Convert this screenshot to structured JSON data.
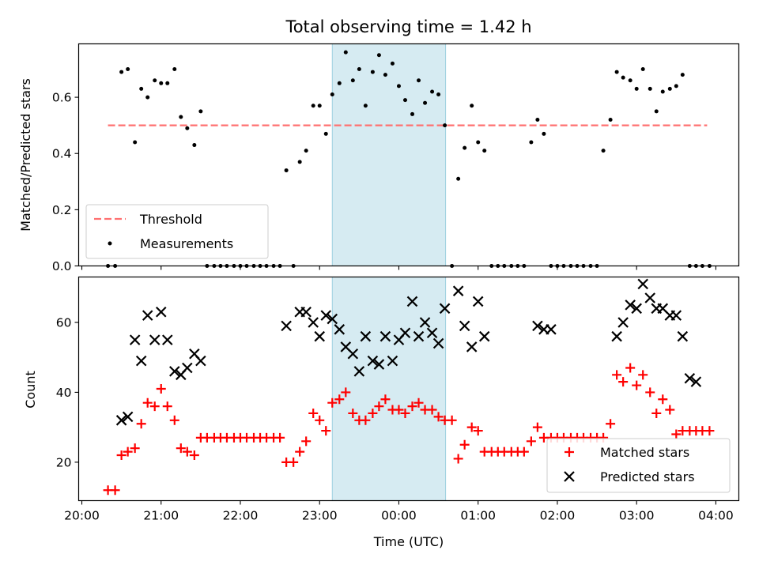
{
  "title": "Total observing time = 1.42 h",
  "chart_data": [
    {
      "type": "scatter",
      "panel": "top",
      "ylabel": "Matched/Predicted stars",
      "xlabel": "",
      "xlim_hours": [
        19.96,
        28.29
      ],
      "ylim": [
        0,
        0.79
      ],
      "yticks": [
        0.0,
        0.2,
        0.4,
        0.6
      ],
      "ytick_labels": [
        "0.0",
        "0.2",
        "0.4",
        "0.6"
      ],
      "threshold": {
        "name": "Threshold",
        "value": 0.5,
        "x_range_hours": [
          20.33,
          27.89
        ],
        "color": "#ff7070"
      },
      "shaded_interval_hours": [
        23.16,
        24.59
      ],
      "legend": {
        "placement": "lower-left",
        "entries": [
          "Threshold",
          "Measurements"
        ]
      },
      "series": [
        {
          "name": "Measurements",
          "color": "#000000",
          "x_hours": [
            20.33,
            20.42,
            20.5,
            20.58,
            20.67,
            20.75,
            20.83,
            20.92,
            21.0,
            21.08,
            21.17,
            21.25,
            21.33,
            21.42,
            21.5,
            21.58,
            21.67,
            21.75,
            21.83,
            21.92,
            22.0,
            22.08,
            22.17,
            22.25,
            22.33,
            22.42,
            22.5,
            22.58,
            22.67,
            22.75,
            22.83,
            22.92,
            23.0,
            23.08,
            23.16,
            23.25,
            23.33,
            23.42,
            23.5,
            23.58,
            23.67,
            23.75,
            23.83,
            23.92,
            24.0,
            24.08,
            24.17,
            24.25,
            24.33,
            24.42,
            24.5,
            24.58,
            24.67,
            24.75,
            24.83,
            24.92,
            25.0,
            25.08,
            25.17,
            25.25,
            25.33,
            25.42,
            25.5,
            25.58,
            25.67,
            25.75,
            25.83,
            25.92,
            26.0,
            26.08,
            26.17,
            26.25,
            26.33,
            26.42,
            26.5,
            26.58,
            26.67,
            26.75,
            26.83,
            26.92,
            27.0,
            27.08,
            27.17,
            27.25,
            27.33,
            27.42,
            27.5,
            27.58,
            27.67,
            27.75,
            27.83,
            27.92
          ],
          "y": [
            0.0,
            0.0,
            0.69,
            0.7,
            0.44,
            0.63,
            0.6,
            0.66,
            0.65,
            0.65,
            0.7,
            0.53,
            0.49,
            0.43,
            0.55,
            0.0,
            0.0,
            0.0,
            0.0,
            0.0,
            0.0,
            0.0,
            0.0,
            0.0,
            0.0,
            0.0,
            0.0,
            0.34,
            0.0,
            0.37,
            0.41,
            0.57,
            0.57,
            0.47,
            0.61,
            0.65,
            0.76,
            0.66,
            0.7,
            0.57,
            0.69,
            0.75,
            0.68,
            0.72,
            0.64,
            0.59,
            0.54,
            0.66,
            0.58,
            0.62,
            0.61,
            0.5,
            0.0,
            0.31,
            0.42,
            0.57,
            0.44,
            0.41,
            0.0,
            0.0,
            0.0,
            0.0,
            0.0,
            0.0,
            0.44,
            0.52,
            0.47,
            0.0,
            0.0,
            0.0,
            0.0,
            0.0,
            0.0,
            0.0,
            0.0,
            0.41,
            0.52,
            0.69,
            0.67,
            0.66,
            0.63,
            0.7,
            0.63,
            0.55,
            0.62,
            0.63,
            0.64,
            0.68,
            0.0,
            0.0,
            0.0,
            0.0
          ]
        }
      ]
    },
    {
      "type": "scatter",
      "panel": "bottom",
      "ylabel": "Count",
      "xlabel": "Time (UTC)",
      "xlim_hours": [
        19.96,
        28.29
      ],
      "ylim": [
        9,
        73
      ],
      "yticks": [
        20,
        40,
        60
      ],
      "ytick_labels": [
        "20",
        "40",
        "60"
      ],
      "xticks_hours": [
        20,
        21,
        22,
        23,
        24,
        25,
        26,
        27,
        28
      ],
      "xtick_labels": [
        "20:00",
        "21:00",
        "22:00",
        "23:00",
        "00:00",
        "01:00",
        "02:00",
        "03:00",
        "04:00"
      ],
      "shaded_interval_hours": [
        23.16,
        24.59
      ],
      "legend": {
        "placement": "lower-right",
        "entries": [
          "Matched stars",
          "Predicted stars"
        ]
      },
      "series": [
        {
          "name": "Matched stars",
          "marker": "+",
          "color": "#ff0000",
          "x_hours": [
            20.33,
            20.42,
            20.5,
            20.58,
            20.67,
            20.75,
            20.83,
            20.92,
            21.0,
            21.08,
            21.17,
            21.25,
            21.33,
            21.42,
            21.5,
            21.58,
            21.67,
            21.75,
            21.83,
            21.92,
            22.0,
            22.08,
            22.17,
            22.25,
            22.33,
            22.42,
            22.5,
            22.58,
            22.67,
            22.75,
            22.83,
            22.92,
            23.0,
            23.08,
            23.16,
            23.25,
            23.33,
            23.42,
            23.5,
            23.58,
            23.67,
            23.75,
            23.83,
            23.92,
            24.0,
            24.08,
            24.17,
            24.25,
            24.33,
            24.42,
            24.5,
            24.58,
            24.67,
            24.75,
            24.83,
            24.92,
            25.0,
            25.08,
            25.17,
            25.25,
            25.33,
            25.42,
            25.5,
            25.58,
            25.67,
            25.75,
            25.83,
            25.92,
            26.0,
            26.08,
            26.17,
            26.25,
            26.33,
            26.42,
            26.5,
            26.58,
            26.67,
            26.75,
            26.83,
            26.92,
            27.0,
            27.08,
            27.17,
            27.25,
            27.33,
            27.42,
            27.5,
            27.58,
            27.67,
            27.75,
            27.83,
            27.92
          ],
          "y": [
            12,
            12,
            22,
            23,
            24,
            31,
            37,
            36,
            41,
            36,
            32,
            24,
            23,
            22,
            27,
            27,
            27,
            27,
            27,
            27,
            27,
            27,
            27,
            27,
            27,
            27,
            27,
            20,
            20,
            23,
            26,
            34,
            32,
            29,
            37,
            38,
            40,
            34,
            32,
            32,
            34,
            36,
            38,
            35,
            35,
            34,
            36,
            37,
            35,
            35,
            33,
            32,
            32,
            21,
            25,
            30,
            29,
            23,
            23,
            23,
            23,
            23,
            23,
            23,
            26,
            30,
            27,
            27,
            27,
            27,
            27,
            27,
            27,
            27,
            27,
            27,
            31,
            45,
            43,
            47,
            42,
            45,
            40,
            34,
            38,
            35,
            28,
            29,
            29,
            29,
            29,
            29
          ]
        },
        {
          "name": "Predicted stars",
          "marker": "x",
          "color": "#000000",
          "x_hours": [
            20.5,
            20.58,
            20.67,
            20.75,
            20.83,
            20.92,
            21.0,
            21.08,
            21.17,
            21.25,
            21.33,
            21.42,
            21.5,
            22.58,
            22.75,
            22.83,
            22.92,
            23.0,
            23.08,
            23.16,
            23.25,
            23.33,
            23.42,
            23.5,
            23.58,
            23.67,
            23.75,
            23.83,
            23.92,
            24.0,
            24.08,
            24.17,
            24.25,
            24.33,
            24.42,
            24.5,
            24.58,
            24.75,
            24.83,
            24.92,
            25.0,
            25.08,
            25.75,
            25.83,
            25.92,
            26.75,
            26.83,
            26.92,
            27.0,
            27.08,
            27.17,
            27.25,
            27.33,
            27.42,
            27.5,
            27.58,
            27.67,
            27.75
          ],
          "y": [
            32,
            33,
            55,
            49,
            62,
            55,
            63,
            55,
            46,
            45,
            47,
            51,
            49,
            59,
            63,
            63,
            60,
            56,
            62,
            61,
            58,
            53,
            51,
            46,
            56,
            49,
            48,
            56,
            49,
            55,
            57,
            66,
            56,
            60,
            57,
            54,
            64,
            69,
            59,
            53,
            66,
            56,
            59,
            58,
            58,
            56,
            60,
            65,
            64,
            71,
            67,
            64,
            64,
            62,
            62,
            56,
            44,
            43
          ]
        }
      ]
    }
  ]
}
